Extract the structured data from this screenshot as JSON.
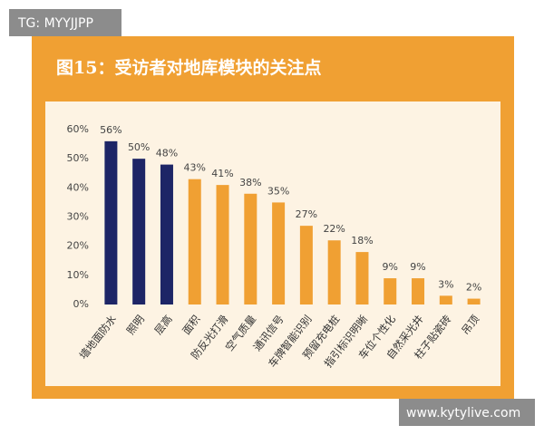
{
  "chart_data": {
    "type": "bar",
    "title": "图15：受访者对地库模块的关注点",
    "categories": [
      "墙地面防水",
      "照明",
      "层高",
      "面积",
      "防反光打滑",
      "空气质量",
      "通讯信号",
      "车牌智能识别",
      "预留充电桩",
      "指引标识明晰",
      "车位个性化",
      "自然采光井",
      "柱子贴瓷砖",
      "吊顶"
    ],
    "values": [
      56,
      50,
      48,
      43,
      41,
      38,
      35,
      27,
      22,
      18,
      9,
      9,
      3,
      2
    ],
    "value_labels": [
      "56%",
      "50%",
      "48%",
      "43%",
      "41%",
      "38%",
      "35%",
      "27%",
      "22%",
      "18%",
      "9%",
      "9%",
      "3%",
      "2%"
    ],
    "colors": [
      "#1d2566",
      "#1d2566",
      "#1d2566",
      "#f0a033",
      "#f0a033",
      "#f0a033",
      "#f0a033",
      "#f0a033",
      "#f0a033",
      "#f0a033",
      "#f0a033",
      "#f0a033",
      "#f0a033",
      "#f0a033"
    ],
    "ylim": [
      0,
      60
    ],
    "yticks": [
      {
        "value": 0,
        "label": "0%"
      },
      {
        "value": 10,
        "label": "10%"
      },
      {
        "value": 20,
        "label": "20%"
      },
      {
        "value": 30,
        "label": "30%"
      },
      {
        "value": 40,
        "label": "40%"
      },
      {
        "value": 50,
        "label": "50%"
      },
      {
        "value": 60,
        "label": "60%"
      }
    ],
    "grid": false
  },
  "watermarks": {
    "top_left": "TG: MYYJJPP",
    "bottom_right": "www.kytylive.com"
  }
}
